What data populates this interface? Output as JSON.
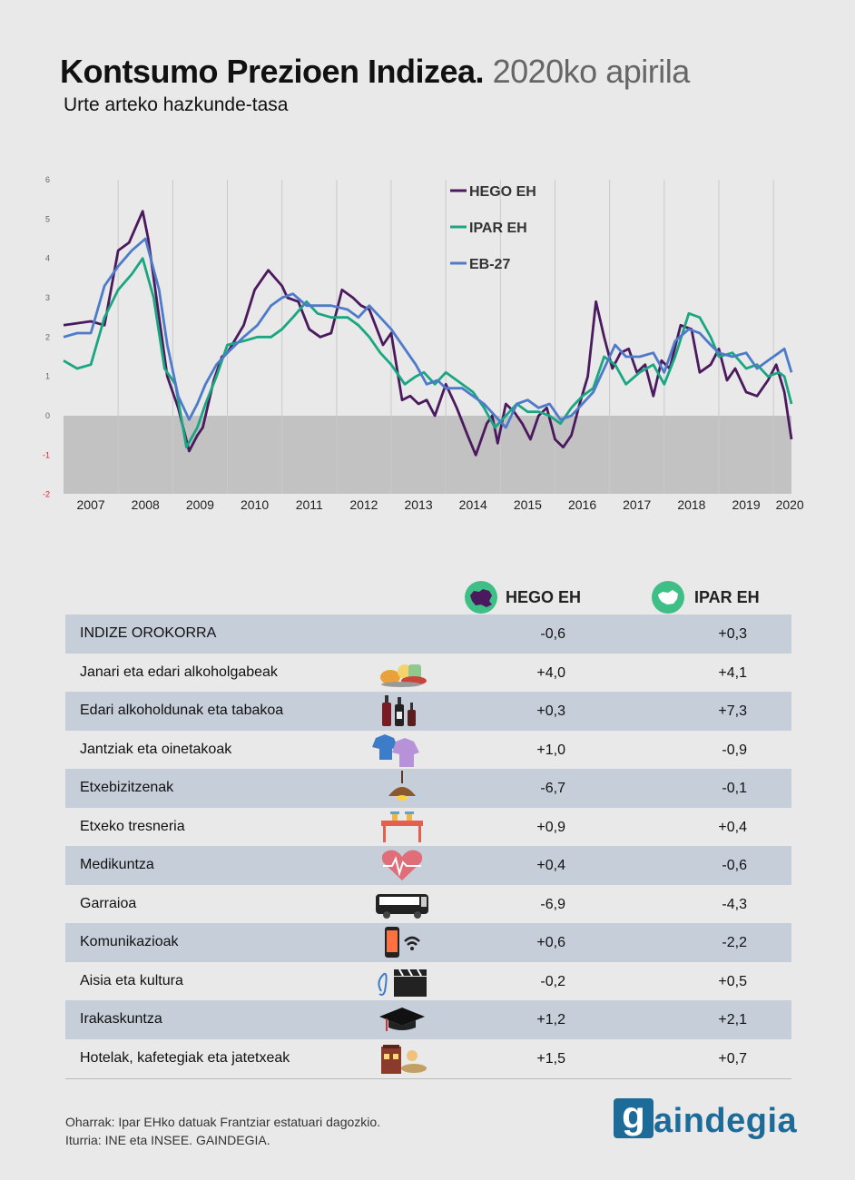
{
  "header": {
    "title": "Kontsumo Prezioen Indizea.",
    "title_period": "2020ko apirila",
    "subtitle": "Urte arteko hazkunde-tasa"
  },
  "chart_data": {
    "type": "line",
    "title": "Kontsumo Prezioen Indizea. 2020ko apirila",
    "subtitle": "Urte arteko hazkunde-tasa",
    "x_labels": [
      "2007",
      "2008",
      "2009",
      "2010",
      "2011",
      "2012",
      "2013",
      "2014",
      "2015",
      "2016",
      "2017",
      "2018",
      "2019",
      "2020"
    ],
    "y_ticks": [
      "6",
      "5",
      "4",
      "3",
      "2",
      "1",
      "0",
      "-1",
      "-2"
    ],
    "ylim": [
      -2,
      6
    ],
    "xlim": [
      2007.0,
      2020.33
    ],
    "negative_zone": true,
    "grid": "vertical",
    "legend_position": "top-center",
    "series": [
      {
        "name": "HEGO EH",
        "color": "#4b1a5e",
        "x": [
          2007.0,
          2007.5,
          2007.75,
          2008.0,
          2008.2,
          2008.45,
          2008.55,
          2008.75,
          2008.9,
          2009.1,
          2009.3,
          2009.45,
          2009.55,
          2009.75,
          2009.9,
          2010.0,
          2010.3,
          2010.5,
          2010.75,
          2011.0,
          2011.1,
          2011.3,
          2011.5,
          2011.7,
          2011.9,
          2012.1,
          2012.3,
          2012.45,
          2012.6,
          2012.85,
          2013.0,
          2013.2,
          2013.35,
          2013.5,
          2013.65,
          2013.8,
          2014.0,
          2014.2,
          2014.4,
          2014.55,
          2014.75,
          2014.85,
          2014.95,
          2015.1,
          2015.25,
          2015.4,
          2015.55,
          2015.7,
          2015.85,
          2016.0,
          2016.15,
          2016.3,
          2016.45,
          2016.6,
          2016.75,
          2016.9,
          2017.05,
          2017.2,
          2017.35,
          2017.5,
          2017.65,
          2017.8,
          2017.95,
          2018.1,
          2018.3,
          2018.5,
          2018.65,
          2018.85,
          2019.0,
          2019.15,
          2019.3,
          2019.5,
          2019.7,
          2019.9,
          2020.05,
          2020.2,
          2020.33
        ],
        "values": [
          2.3,
          2.4,
          2.3,
          4.2,
          4.4,
          5.2,
          4.5,
          2.5,
          1.0,
          0.2,
          -0.9,
          -0.5,
          -0.3,
          0.9,
          1.5,
          1.6,
          2.3,
          3.2,
          3.7,
          3.3,
          3.0,
          2.9,
          2.2,
          2.0,
          2.1,
          3.2,
          3.0,
          2.8,
          2.7,
          1.8,
          2.1,
          0.4,
          0.5,
          0.3,
          0.4,
          0.0,
          0.8,
          0.2,
          -0.5,
          -1.0,
          -0.2,
          0.0,
          -0.7,
          0.3,
          0.1,
          -0.2,
          -0.6,
          0.0,
          0.2,
          -0.6,
          -0.8,
          -0.5,
          0.3,
          1.0,
          2.9,
          2.0,
          1.2,
          1.6,
          1.7,
          1.1,
          1.3,
          0.5,
          1.4,
          1.2,
          2.3,
          2.2,
          1.1,
          1.3,
          1.7,
          0.9,
          1.2,
          0.6,
          0.5,
          0.9,
          1.3,
          0.6,
          -0.6
        ]
      },
      {
        "name": "IPAR EH",
        "color": "#1aa681",
        "x": [
          2007.0,
          2007.25,
          2007.5,
          2007.75,
          2008.0,
          2008.25,
          2008.45,
          2008.65,
          2008.85,
          2009.05,
          2009.25,
          2009.45,
          2009.6,
          2009.8,
          2010.0,
          2010.3,
          2010.55,
          2010.8,
          2011.0,
          2011.2,
          2011.45,
          2011.65,
          2011.9,
          2012.2,
          2012.4,
          2012.6,
          2012.8,
          2013.0,
          2013.25,
          2013.45,
          2013.6,
          2013.8,
          2014.0,
          2014.3,
          2014.5,
          2014.7,
          2014.9,
          2015.1,
          2015.3,
          2015.5,
          2015.7,
          2015.9,
          2016.1,
          2016.3,
          2016.5,
          2016.7,
          2016.9,
          2017.1,
          2017.3,
          2017.55,
          2017.8,
          2018.0,
          2018.2,
          2018.45,
          2018.65,
          2018.85,
          2019.0,
          2019.25,
          2019.5,
          2019.7,
          2019.9,
          2020.1,
          2020.2,
          2020.33
        ],
        "values": [
          1.4,
          1.2,
          1.3,
          2.5,
          3.2,
          3.6,
          4.0,
          3.0,
          1.2,
          0.8,
          -0.8,
          -0.3,
          0.3,
          1.0,
          1.8,
          1.9,
          2.0,
          2.0,
          2.2,
          2.5,
          2.9,
          2.6,
          2.5,
          2.5,
          2.3,
          2.0,
          1.6,
          1.3,
          0.8,
          1.0,
          1.1,
          0.8,
          1.1,
          0.8,
          0.6,
          0.2,
          -0.3,
          0.0,
          0.3,
          0.1,
          0.1,
          0.0,
          -0.2,
          0.2,
          0.5,
          0.7,
          1.5,
          1.3,
          0.8,
          1.1,
          1.3,
          0.8,
          1.5,
          2.6,
          2.5,
          2.0,
          1.5,
          1.6,
          1.2,
          1.3,
          1.0,
          1.1,
          1.0,
          0.3
        ]
      },
      {
        "name": "EB-27",
        "color": "#4e7bc9",
        "x": [
          2007.0,
          2007.25,
          2007.5,
          2007.75,
          2008.0,
          2008.25,
          2008.5,
          2008.75,
          2008.9,
          2009.1,
          2009.3,
          2009.45,
          2009.6,
          2009.8,
          2010.0,
          2010.3,
          2010.55,
          2010.8,
          2011.0,
          2011.2,
          2011.45,
          2011.65,
          2011.9,
          2012.2,
          2012.4,
          2012.6,
          2012.8,
          2013.0,
          2013.25,
          2013.45,
          2013.65,
          2013.85,
          2014.0,
          2014.3,
          2014.5,
          2014.7,
          2014.9,
          2015.1,
          2015.3,
          2015.5,
          2015.7,
          2015.9,
          2016.1,
          2016.3,
          2016.5,
          2016.7,
          2016.9,
          2017.1,
          2017.3,
          2017.55,
          2017.8,
          2018.0,
          2018.2,
          2018.45,
          2018.65,
          2018.85,
          2019.0,
          2019.25,
          2019.5,
          2019.7,
          2019.9,
          2020.1,
          2020.2,
          2020.33
        ],
        "values": [
          2.0,
          2.1,
          2.1,
          3.3,
          3.8,
          4.2,
          4.5,
          3.2,
          1.8,
          0.5,
          -0.1,
          0.3,
          0.8,
          1.3,
          1.6,
          2.0,
          2.3,
          2.8,
          3.0,
          3.1,
          2.8,
          2.8,
          2.8,
          2.7,
          2.5,
          2.8,
          2.5,
          2.2,
          1.7,
          1.3,
          0.8,
          0.9,
          0.7,
          0.7,
          0.5,
          0.3,
          0.0,
          -0.3,
          0.3,
          0.4,
          0.2,
          0.3,
          -0.1,
          0.0,
          0.3,
          0.6,
          1.2,
          1.8,
          1.5,
          1.5,
          1.6,
          1.1,
          1.9,
          2.2,
          2.1,
          1.8,
          1.6,
          1.5,
          1.6,
          1.2,
          1.4,
          1.6,
          1.7,
          1.1
        ]
      }
    ]
  },
  "table": {
    "columns": [
      "HEGO EH",
      "IPAR EH"
    ],
    "rows": [
      {
        "label": "INDIZE OROKORRA",
        "icon": "none",
        "hego": "-0,6",
        "ipar": "+0,3",
        "shaded": true
      },
      {
        "label": "Janari eta edari alkoholgabeak",
        "icon": "food-icon",
        "hego": "+4,0",
        "ipar": "+4,1",
        "shaded": false
      },
      {
        "label": "Edari alkoholdunak eta tabakoa",
        "icon": "bottles-icon",
        "hego": "+0,3",
        "ipar": "+7,3",
        "shaded": true
      },
      {
        "label": "Jantziak eta oinetakoak",
        "icon": "clothes-icon",
        "hego": "+1,0",
        "ipar": "-0,9",
        "shaded": false
      },
      {
        "label": "Etxebizitzenak",
        "icon": "lamp-icon",
        "hego": "-6,7",
        "ipar": "-0,1",
        "shaded": true
      },
      {
        "label": "Etxeko tresneria",
        "icon": "furniture-icon",
        "hego": "+0,9",
        "ipar": "+0,4",
        "shaded": false
      },
      {
        "label": "Medikuntza",
        "icon": "heart-pulse-icon",
        "hego": "+0,4",
        "ipar": "-0,6",
        "shaded": true
      },
      {
        "label": "Garraioa",
        "icon": "bus-icon",
        "hego": "-6,9",
        "ipar": "-4,3",
        "shaded": false
      },
      {
        "label": "Komunikazioak",
        "icon": "phone-wifi-icon",
        "hego": "+0,6",
        "ipar": "-2,2",
        "shaded": true
      },
      {
        "label": "Aisia eta kultura",
        "icon": "music-clapper-icon",
        "hego": "-0,2",
        "ipar": "+0,5",
        "shaded": false
      },
      {
        "label": "Irakaskuntza",
        "icon": "graduation-cap-icon",
        "hego": "+1,2",
        "ipar": "+2,1",
        "shaded": true
      },
      {
        "label": "Hotelak, kafetegiak eta jatetxeak",
        "icon": "restaurant-icon",
        "hego": "+1,5",
        "ipar": "+0,7",
        "shaded": false
      }
    ]
  },
  "footer": {
    "note": "Oharrak: Ipar EHko datuak Frantziar estatuari dagozkio.",
    "source": "Iturria: INE eta INSEE. GAINDEGIA.",
    "logo_letter": "g",
    "logo_text": "aindegia"
  },
  "colors": {
    "hego": "#4b1a5e",
    "ipar": "#1aa681",
    "eb": "#4e7bc9",
    "row_shade": "#c6cfd9",
    "logo": "#1d6b98",
    "negative_zone": "#c2c2c2"
  }
}
